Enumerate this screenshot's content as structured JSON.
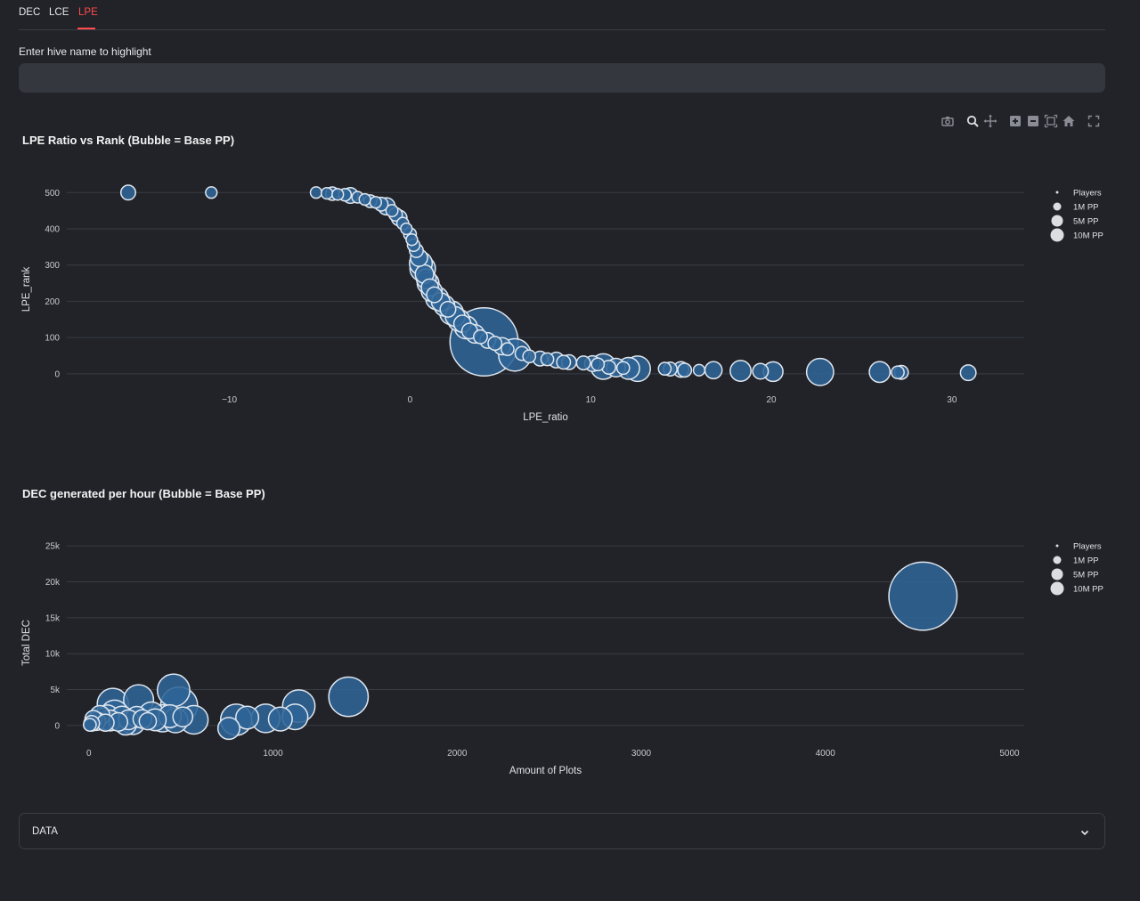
{
  "tabs": [
    {
      "label": "DEC",
      "active": false
    },
    {
      "label": "LCE",
      "active": false
    },
    {
      "label": "LPE",
      "active": true
    }
  ],
  "highlight": {
    "label": "Enter hive name to highlight",
    "value": "",
    "placeholder": ""
  },
  "modebar": {
    "icons": [
      "camera-icon",
      "zoom-icon",
      "pan-icon",
      "zoom-in-icon",
      "zoom-out-icon",
      "autoscale-icon",
      "home-icon",
      "fullscreen-icon"
    ]
  },
  "colors": {
    "background": "#212329",
    "bubble_fill": "#2f6496",
    "bubble_stroke": "#dfe6ee",
    "grid": "#3a3c44",
    "accent": "#ff4b4b"
  },
  "legend_entries": [
    "Players",
    "1M PP",
    "5M PP",
    "10M PP"
  ],
  "charts": [
    {
      "title": "LPE Ratio vs Rank (Bubble = Base PP)",
      "chart_data": {
        "type": "scatter",
        "title": "LPE Ratio vs Rank (Bubble = Base PP)",
        "xlabel": "LPE_ratio",
        "ylabel": "LPE_rank",
        "xlim": [
          -19,
          34
        ],
        "ylim": [
          -25,
          540
        ],
        "xticks": [
          -10,
          0,
          10,
          20,
          30
        ],
        "xtick_labels": [
          "−10",
          "0",
          "10",
          "20",
          "30"
        ],
        "yticks": [
          0,
          100,
          200,
          300,
          400,
          500
        ],
        "ytick_labels": [
          "0",
          "100",
          "200",
          "300",
          "400",
          "500"
        ],
        "grid": true,
        "legend": "top-right",
        "points": [
          {
            "x": -15.6,
            "y": 500,
            "size": 2.5
          },
          {
            "x": -11.0,
            "y": 500,
            "size": 1
          },
          {
            "x": -5.2,
            "y": 500,
            "size": 1
          },
          {
            "x": -4.6,
            "y": 498,
            "size": 1
          },
          {
            "x": -4.3,
            "y": 497,
            "size": 1.8
          },
          {
            "x": -4.0,
            "y": 495,
            "size": 1
          },
          {
            "x": -3.6,
            "y": 494,
            "size": 1.4
          },
          {
            "x": -3.3,
            "y": 492,
            "size": 3
          },
          {
            "x": -2.9,
            "y": 487,
            "size": 1
          },
          {
            "x": -2.5,
            "y": 481,
            "size": 1
          },
          {
            "x": -2.2,
            "y": 476,
            "size": 1.5
          },
          {
            "x": -1.9,
            "y": 473,
            "size": 1
          },
          {
            "x": -1.6,
            "y": 468,
            "size": 2
          },
          {
            "x": -1.3,
            "y": 462,
            "size": 4
          },
          {
            "x": -1.0,
            "y": 450,
            "size": 1.2
          },
          {
            "x": -0.8,
            "y": 440,
            "size": 1.8
          },
          {
            "x": -0.6,
            "y": 430,
            "size": 3
          },
          {
            "x": -0.4,
            "y": 415,
            "size": 1.2
          },
          {
            "x": -0.2,
            "y": 400,
            "size": 1
          },
          {
            "x": 0.0,
            "y": 385,
            "size": 1.5
          },
          {
            "x": 0.1,
            "y": 370,
            "size": 1
          },
          {
            "x": 0.2,
            "y": 355,
            "size": 1.4
          },
          {
            "x": 0.35,
            "y": 340,
            "size": 2
          },
          {
            "x": 0.5,
            "y": 320,
            "size": 4
          },
          {
            "x": 0.6,
            "y": 305,
            "size": 9
          },
          {
            "x": 0.7,
            "y": 290,
            "size": 12
          },
          {
            "x": 0.8,
            "y": 275,
            "size": 5
          },
          {
            "x": 0.9,
            "y": 262,
            "size": 6
          },
          {
            "x": 1.0,
            "y": 250,
            "size": 8
          },
          {
            "x": 1.1,
            "y": 238,
            "size": 4
          },
          {
            "x": 1.2,
            "y": 228,
            "size": 7
          },
          {
            "x": 1.35,
            "y": 218,
            "size": 3
          },
          {
            "x": 1.5,
            "y": 208,
            "size": 9
          },
          {
            "x": 1.7,
            "y": 198,
            "size": 5
          },
          {
            "x": 1.9,
            "y": 188,
            "size": 7
          },
          {
            "x": 2.1,
            "y": 178,
            "size": 3
          },
          {
            "x": 2.3,
            "y": 168,
            "size": 10
          },
          {
            "x": 2.5,
            "y": 158,
            "size": 6
          },
          {
            "x": 2.7,
            "y": 148,
            "size": 8
          },
          {
            "x": 2.9,
            "y": 138,
            "size": 4
          },
          {
            "x": 3.1,
            "y": 128,
            "size": 9
          },
          {
            "x": 3.3,
            "y": 118,
            "size": 3
          },
          {
            "x": 3.6,
            "y": 110,
            "size": 5
          },
          {
            "x": 3.9,
            "y": 102,
            "size": 2
          },
          {
            "x": 4.1,
            "y": 88,
            "size": 120
          },
          {
            "x": 4.3,
            "y": 92,
            "size": 3
          },
          {
            "x": 4.7,
            "y": 84,
            "size": 2
          },
          {
            "x": 5.1,
            "y": 76,
            "size": 4
          },
          {
            "x": 5.4,
            "y": 68,
            "size": 1.5
          },
          {
            "x": 5.8,
            "y": 52,
            "size": 22
          },
          {
            "x": 6.2,
            "y": 56,
            "size": 2
          },
          {
            "x": 6.6,
            "y": 48,
            "size": 1.5
          },
          {
            "x": 7.2,
            "y": 42,
            "size": 2.5
          },
          {
            "x": 7.6,
            "y": 40,
            "size": 1.5
          },
          {
            "x": 8.1,
            "y": 38,
            "size": 3
          },
          {
            "x": 8.5,
            "y": 32,
            "size": 2
          },
          {
            "x": 8.8,
            "y": 32,
            "size": 2.5
          },
          {
            "x": 9.6,
            "y": 30,
            "size": 2
          },
          {
            "x": 10.1,
            "y": 28,
            "size": 3
          },
          {
            "x": 10.4,
            "y": 26,
            "size": 1.5
          },
          {
            "x": 10.7,
            "y": 20,
            "size": 12
          },
          {
            "x": 11.0,
            "y": 18,
            "size": 2
          },
          {
            "x": 11.4,
            "y": 17,
            "size": 5
          },
          {
            "x": 11.8,
            "y": 16,
            "size": 1.5
          },
          {
            "x": 12.1,
            "y": 15,
            "size": 8
          },
          {
            "x": 12.6,
            "y": 14,
            "size": 12
          },
          {
            "x": 14.1,
            "y": 14,
            "size": 1.5
          },
          {
            "x": 14.4,
            "y": 13,
            "size": 2
          },
          {
            "x": 15.0,
            "y": 12,
            "size": 3
          },
          {
            "x": 15.2,
            "y": 10,
            "size": 2
          },
          {
            "x": 16.0,
            "y": 10,
            "size": 1
          },
          {
            "x": 16.8,
            "y": 10,
            "size": 4
          },
          {
            "x": 18.3,
            "y": 8,
            "size": 7
          },
          {
            "x": 19.4,
            "y": 7,
            "size": 3
          },
          {
            "x": 20.1,
            "y": 6,
            "size": 6
          },
          {
            "x": 22.7,
            "y": 5,
            "size": 14
          },
          {
            "x": 26.0,
            "y": 5,
            "size": 7
          },
          {
            "x": 27.0,
            "y": 4,
            "size": 1.5
          },
          {
            "x": 27.2,
            "y": 4,
            "size": 2
          },
          {
            "x": 30.9,
            "y": 3,
            "size": 3
          }
        ]
      }
    },
    {
      "title": "DEC generated per hour (Bubble = Base PP)",
      "chart_data": {
        "type": "scatter",
        "title": "DEC generated per hour (Bubble = Base PP)",
        "xlabel": "Amount of Plots",
        "ylabel": "Total DEC",
        "xlim": [
          -120,
          5080
        ],
        "ylim": [
          -1500,
          27000
        ],
        "xticks": [
          0,
          1000,
          2000,
          3000,
          4000,
          5000
        ],
        "xtick_labels": [
          "0",
          "1000",
          "2000",
          "3000",
          "4000",
          "5000"
        ],
        "yticks": [
          0,
          5000,
          10000,
          15000,
          20000,
          25000
        ],
        "ytick_labels": [
          "0",
          "5k",
          "10k",
          "15k",
          "20k",
          "25k"
        ],
        "grid": true,
        "legend": "top-right",
        "points": [
          {
            "x": 4530,
            "y": 18000,
            "size": 120
          },
          {
            "x": 1410,
            "y": 4000,
            "size": 35
          },
          {
            "x": 460,
            "y": 4900,
            "size": 22
          },
          {
            "x": 490,
            "y": 2800,
            "size": 30
          },
          {
            "x": 270,
            "y": 3600,
            "size": 18
          },
          {
            "x": 130,
            "y": 3000,
            "size": 20
          },
          {
            "x": 140,
            "y": 1600,
            "size": 15
          },
          {
            "x": 100,
            "y": 1200,
            "size": 10
          },
          {
            "x": 70,
            "y": 900,
            "size": 8
          },
          {
            "x": 40,
            "y": 600,
            "size": 5
          },
          {
            "x": 15,
            "y": 300,
            "size": 3
          },
          {
            "x": 5,
            "y": 100,
            "size": 1.5
          },
          {
            "x": 25,
            "y": 900,
            "size": 4
          },
          {
            "x": 60,
            "y": 1400,
            "size": 6
          },
          {
            "x": 90,
            "y": 400,
            "size": 4
          },
          {
            "x": 115,
            "y": 700,
            "size": 7
          },
          {
            "x": 160,
            "y": 500,
            "size": 5
          },
          {
            "x": 180,
            "y": 1100,
            "size": 9
          },
          {
            "x": 200,
            "y": 200,
            "size": 8
          },
          {
            "x": 215,
            "y": 800,
            "size": 6
          },
          {
            "x": 240,
            "y": 400,
            "size": 10
          },
          {
            "x": 260,
            "y": 1200,
            "size": 7
          },
          {
            "x": 290,
            "y": 900,
            "size": 5
          },
          {
            "x": 320,
            "y": 600,
            "size": 4
          },
          {
            "x": 340,
            "y": 1500,
            "size": 12
          },
          {
            "x": 360,
            "y": 800,
            "size": 8
          },
          {
            "x": 400,
            "y": 1000,
            "size": 14
          },
          {
            "x": 440,
            "y": 1300,
            "size": 9
          },
          {
            "x": 470,
            "y": 700,
            "size": 11
          },
          {
            "x": 510,
            "y": 1200,
            "size": 6
          },
          {
            "x": 570,
            "y": 800,
            "size": 16
          },
          {
            "x": 760,
            "y": -400,
            "size": 8
          },
          {
            "x": 800,
            "y": 800,
            "size": 20
          },
          {
            "x": 860,
            "y": 1100,
            "size": 9
          },
          {
            "x": 960,
            "y": 1000,
            "size": 16
          },
          {
            "x": 1040,
            "y": 900,
            "size": 10
          },
          {
            "x": 1120,
            "y": 1200,
            "size": 12
          },
          {
            "x": 1140,
            "y": 2700,
            "size": 22
          }
        ]
      }
    }
  ],
  "expander": {
    "label": "DATA"
  }
}
